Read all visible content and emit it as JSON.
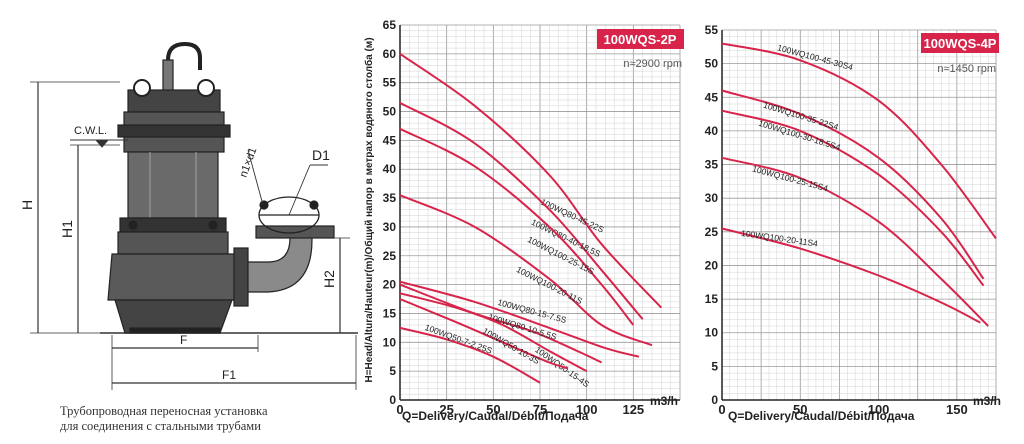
{
  "drawing": {
    "labels": {
      "cwl": "C.W.L.",
      "h": "H",
      "h1": "H1",
      "h2": "H2",
      "f": "F",
      "f1": "F1",
      "d1": "D1",
      "nd": "n1×d1"
    },
    "caption": [
      "Трубопроводная переносная установка",
      "для соединения с стальными трубами"
    ]
  },
  "colors": {
    "curve": "#d8244a",
    "badge": "#d8244a",
    "grid_minor": "#c8c8c8",
    "grid_major": "#9a9a9a"
  },
  "chart_data": [
    {
      "type": "line",
      "badge": "100WQS-2P",
      "speed": "n≈2900 rpm",
      "xlabel": "Q=Delivery/Caudal/Débit/Подача",
      "ylabel": "H=Head/Altura/Hauteur(m)/Общий напор в метрах водяного столба (м)",
      "xunit": "m3/h",
      "xlim": [
        0,
        150
      ],
      "ylim": [
        0,
        65
      ],
      "xticks": [
        0,
        25,
        50,
        75,
        100,
        125
      ],
      "yticks": [
        0,
        5,
        10,
        15,
        20,
        25,
        30,
        35,
        40,
        45,
        50,
        55,
        60,
        65
      ],
      "grid": true,
      "series": [
        {
          "name": "100WQ80-45-22S",
          "points": [
            [
              0,
              60
            ],
            [
              40,
              51
            ],
            [
              80,
              39
            ],
            [
              108,
              27
            ],
            [
              140,
              16
            ]
          ],
          "label_at": [
            75,
            34
          ],
          "label_angle": 25
        },
        {
          "name": "100WQ80-40-18.5S",
          "points": [
            [
              0,
              51.5
            ],
            [
              40,
              44.5
            ],
            [
              80,
              33
            ],
            [
              108,
              22.5
            ],
            [
              130,
              14
            ]
          ],
          "label_at": [
            70,
            30.5
          ],
          "label_angle": 26
        },
        {
          "name": "100WQ100-25-15S",
          "points": [
            [
              0,
              47
            ],
            [
              40,
              40.5
            ],
            [
              80,
              30
            ],
            [
              108,
              20
            ],
            [
              125,
              13
            ]
          ],
          "label_at": [
            68,
            27.5
          ],
          "label_angle": 27
        },
        {
          "name": "100WQ100-20-11S",
          "points": [
            [
              0,
              35.5
            ],
            [
              40,
              30
            ],
            [
              80,
              21
            ],
            [
              108,
              13
            ],
            [
              135,
              9.5
            ]
          ],
          "label_at": [
            62,
            22.3
          ],
          "label_angle": 27
        },
        {
          "name": "100WQ80-15-7.5S",
          "points": [
            [
              0,
              20.5
            ],
            [
              40,
              17
            ],
            [
              80,
              12.5
            ],
            [
              110,
              9
            ],
            [
              128,
              7.5
            ]
          ],
          "label_at": [
            52,
            16.5
          ],
          "label_angle": 15
        },
        {
          "name": "100WQ80-10-5.5S",
          "points": [
            [
              0,
              20
            ],
            [
              40,
              15
            ],
            [
              70,
              12
            ],
            [
              95,
              8.5
            ],
            [
              108,
              6.5
            ]
          ],
          "label_at": [
            47,
            14
          ],
          "label_angle": 17
        },
        {
          "name": "100WQ50-15-4S",
          "points": [
            [
              0,
              18.5
            ],
            [
              30,
              16
            ],
            [
              55,
              13
            ],
            [
              80,
              8.5
            ],
            [
              100,
              5
            ]
          ],
          "label_at": [
            72,
            8.5
          ],
          "label_angle": 35
        },
        {
          "name": "100WQ50-10-3S",
          "points": [
            [
              0,
              17.5
            ],
            [
              30,
              13.5
            ],
            [
              55,
              10
            ],
            [
              80,
              6.5
            ],
            [
              90,
              5.5
            ]
          ],
          "label_at": [
            44,
            11.7
          ],
          "label_angle": 30
        },
        {
          "name": "100WQ50-7-2.25S",
          "points": [
            [
              0,
              12.5
            ],
            [
              25,
              10.5
            ],
            [
              50,
              7.5
            ],
            [
              75,
              3
            ]
          ],
          "label_at": [
            13,
            12.2
          ],
          "label_angle": 20
        }
      ]
    },
    {
      "type": "line",
      "badge": "100WQS-4P",
      "speed": "n≈1450 rpm",
      "xlabel": "Q=Delivery/Caudal/Débit/Подача",
      "ylabel": "",
      "xunit": "m3/h",
      "xlim": [
        0,
        175
      ],
      "ylim": [
        0,
        55
      ],
      "xticks": [
        0,
        50,
        100,
        150
      ],
      "yticks": [
        0,
        5,
        10,
        15,
        20,
        25,
        30,
        35,
        40,
        45,
        50,
        55
      ],
      "grid": true,
      "series": [
        {
          "name": "100WQ100-45-30S4",
          "points": [
            [
              0,
              53
            ],
            [
              50,
              50.5
            ],
            [
              100,
              44.5
            ],
            [
              140,
              35
            ],
            [
              175,
              24
            ]
          ],
          "label_at": [
            35,
            52
          ],
          "label_angle": 15
        },
        {
          "name": "100WQ100-35-22S4",
          "points": [
            [
              0,
              46
            ],
            [
              50,
              42.5
            ],
            [
              100,
              36
            ],
            [
              140,
              27
            ],
            [
              167,
              18
            ]
          ],
          "label_at": [
            26,
            43.5
          ],
          "label_angle": 17
        },
        {
          "name": "100WQ100-30-18.5S4",
          "points": [
            [
              0,
              43
            ],
            [
              50,
              40
            ],
            [
              100,
              33.5
            ],
            [
              140,
              25
            ],
            [
              167,
              17
            ]
          ],
          "label_at": [
            23,
            40.8
          ],
          "label_angle": 17
        },
        {
          "name": "100WQ100-25-15S4",
          "points": [
            [
              0,
              36
            ],
            [
              50,
              33
            ],
            [
              100,
              26.5
            ],
            [
              140,
              18
            ],
            [
              170,
              11
            ]
          ],
          "label_at": [
            19,
            34
          ],
          "label_angle": 15
        },
        {
          "name": "100WQ100-20-11S4",
          "points": [
            [
              0,
              25.5
            ],
            [
              50,
              22.5
            ],
            [
              100,
              18.5
            ],
            [
              140,
              14.5
            ],
            [
              165,
              11.5
            ]
          ],
          "label_at": [
            12,
            24.4
          ],
          "label_angle": 8
        }
      ]
    }
  ]
}
